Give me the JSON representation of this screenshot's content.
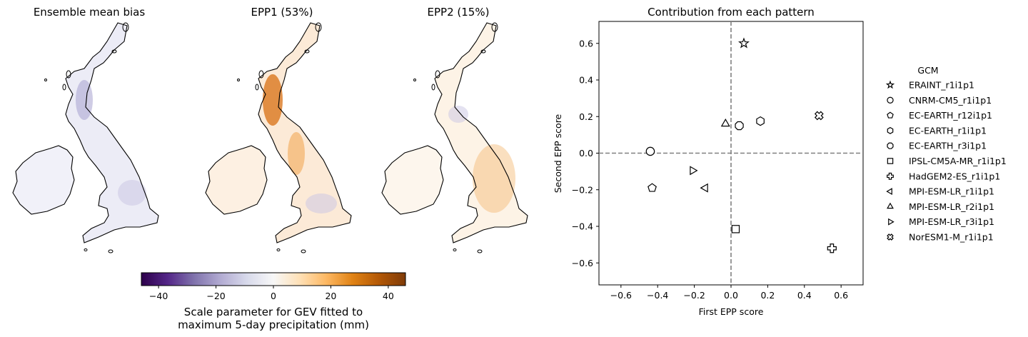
{
  "maps": {
    "panels": [
      {
        "title": "Ensemble mean bias",
        "tint": "#c9c9e6"
      },
      {
        "title": "EPP1 (53%)",
        "tint": "#f7c48b"
      },
      {
        "title": "EPP2 (15%)",
        "tint": "#f8dcb6"
      }
    ]
  },
  "colorbar": {
    "label_line1": "Scale parameter for GEV fitted to",
    "label_line2": "maximum 5-day precipitation (mm)",
    "min": -46,
    "max": 46,
    "ticks": [
      -40,
      -20,
      0,
      20,
      40
    ],
    "tick_labels": [
      "−40",
      "−20",
      "0",
      "20",
      "40"
    ],
    "colors": [
      "#2d004b",
      "#542788",
      "#8073ac",
      "#b2abd2",
      "#d8daeb",
      "#f7f7f7",
      "#fee0b6",
      "#fdb863",
      "#e08214",
      "#b35806",
      "#7f3b08"
    ]
  },
  "chart_data": {
    "type": "scatter",
    "title": "Contribution from each pattern",
    "xlabel": "First EPP score",
    "ylabel": "Second EPP score",
    "xlim": [
      -0.72,
      0.72
    ],
    "ylim": [
      -0.72,
      0.72
    ],
    "xticks": [
      -0.6,
      -0.4,
      -0.2,
      0.0,
      0.2,
      0.4,
      0.6
    ],
    "xtick_labels": [
      "−0.6",
      "−0.4",
      "−0.2",
      "0.0",
      "0.2",
      "0.4",
      "0.6"
    ],
    "yticks": [
      -0.6,
      -0.4,
      -0.2,
      0.0,
      0.2,
      0.4,
      0.6
    ],
    "ytick_labels": [
      "−0.6",
      "−0.4",
      "−0.2",
      "0.0",
      "0.2",
      "0.4",
      "0.6"
    ],
    "reference_lines": {
      "x": 0,
      "y": 0,
      "style": "dashed",
      "color": "#808080"
    },
    "legend_title": "GCM",
    "legend_position": "right",
    "series": [
      {
        "name": "ERAINT_r1i1p1",
        "marker": "star",
        "x": 0.07,
        "y": 0.6
      },
      {
        "name": "CNRM-CM5_r1i1p1",
        "marker": "circle",
        "x": -0.44,
        "y": 0.01
      },
      {
        "name": "EC-EARTH_r12i1p1",
        "marker": "pentagon",
        "x": -0.43,
        "y": -0.19
      },
      {
        "name": "EC-EARTH_r1i1p1",
        "marker": "hexagon",
        "x": 0.16,
        "y": 0.175
      },
      {
        "name": "EC-EARTH_r3i1p1",
        "marker": "octagon",
        "x": 0.045,
        "y": 0.15
      },
      {
        "name": "IPSL-CM5A-MR_r1i1p1",
        "marker": "square",
        "x": 0.025,
        "y": -0.415
      },
      {
        "name": "HadGEM2-ES_r1i1p1",
        "marker": "plus",
        "x": 0.55,
        "y": -0.52
      },
      {
        "name": "MPI-ESM-LR_r1i1p1",
        "marker": "triangle-left",
        "x": -0.14,
        "y": -0.19
      },
      {
        "name": "MPI-ESM-LR_r2i1p1",
        "marker": "triangle-up",
        "x": -0.03,
        "y": 0.16
      },
      {
        "name": "MPI-ESM-LR_r3i1p1",
        "marker": "triangle-right",
        "x": -0.21,
        "y": -0.095
      },
      {
        "name": "NorESM1-M_r1i1p1",
        "marker": "x-filled",
        "x": 0.48,
        "y": 0.205
      }
    ]
  }
}
